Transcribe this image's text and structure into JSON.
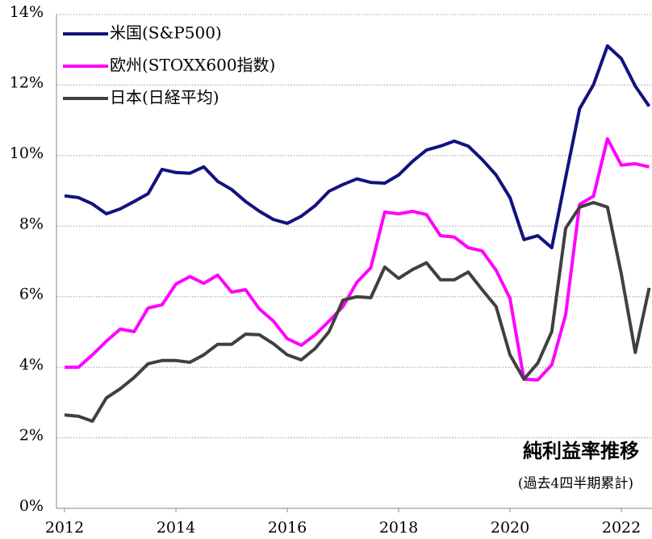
{
  "chart_data": {
    "type": "line",
    "title": "純利益率推移",
    "subtitle": "(過去4四半期累計)",
    "x": [
      2012,
      2012.25,
      2012.5,
      2012.75,
      2013,
      2013.25,
      2013.5,
      2013.75,
      2014,
      2014.25,
      2014.5,
      2014.75,
      2015,
      2015.25,
      2015.5,
      2015.75,
      2016,
      2016.25,
      2016.5,
      2016.75,
      2017,
      2017.25,
      2017.5,
      2017.75,
      2018,
      2018.25,
      2018.5,
      2018.75,
      2019,
      2019.25,
      2019.5,
      2019.75,
      2020,
      2020.25,
      2020.5,
      2020.75,
      2021,
      2021.25,
      2021.5,
      2021.75,
      2022,
      2022.25,
      2022.5
    ],
    "xlim": [
      2011.855,
      2022.55
    ],
    "xticks": [
      2012,
      2014,
      2016,
      2018,
      2020,
      2022
    ],
    "ylim": [
      0,
      14
    ],
    "yticks": [
      {
        "value": 0,
        "label": "0%"
      },
      {
        "value": 2,
        "label": "2%"
      },
      {
        "value": 4,
        "label": "4%"
      },
      {
        "value": 6,
        "label": "6%"
      },
      {
        "value": 8,
        "label": "8%"
      },
      {
        "value": 10,
        "label": "10%"
      },
      {
        "value": 12,
        "label": "12%"
      },
      {
        "value": 14,
        "label": "14%"
      }
    ],
    "grid": true,
    "legend": "top-left",
    "series": [
      {
        "name": "米国(S&P500)",
        "color": "#12127e",
        "values": [
          8.86,
          8.81,
          8.63,
          8.35,
          8.49,
          8.7,
          8.92,
          9.61,
          9.52,
          9.5,
          9.68,
          9.27,
          9.04,
          8.7,
          8.42,
          8.19,
          8.08,
          8.28,
          8.58,
          8.99,
          9.18,
          9.34,
          9.24,
          9.22,
          9.45,
          9.84,
          10.16,
          10.27,
          10.41,
          10.27,
          9.89,
          9.45,
          8.81,
          7.62,
          7.73,
          7.39,
          9.38,
          11.33,
          12.01,
          13.11,
          12.75,
          11.97,
          11.4
        ]
      },
      {
        "name": "欧州(STOXX600指数)",
        "color": "#ff00ff",
        "values": [
          4.0,
          4.0,
          4.35,
          4.74,
          5.08,
          5.01,
          5.68,
          5.77,
          6.36,
          6.57,
          6.38,
          6.61,
          6.13,
          6.2,
          5.65,
          5.31,
          4.81,
          4.62,
          4.92,
          5.31,
          5.72,
          6.41,
          6.82,
          8.4,
          8.35,
          8.42,
          8.33,
          7.73,
          7.69,
          7.39,
          7.3,
          6.75,
          5.95,
          3.66,
          3.64,
          4.07,
          5.49,
          8.62,
          8.85,
          10.48,
          9.73,
          9.77,
          9.68
        ]
      },
      {
        "name": "日本(日経平均)",
        "color": "#404040",
        "values": [
          2.65,
          2.61,
          2.47,
          3.13,
          3.39,
          3.71,
          4.1,
          4.19,
          4.19,
          4.14,
          4.35,
          4.65,
          4.65,
          4.94,
          4.92,
          4.67,
          4.35,
          4.21,
          4.53,
          5.01,
          5.9,
          6.0,
          5.97,
          6.84,
          6.52,
          6.77,
          6.96,
          6.48,
          6.48,
          6.7,
          6.2,
          5.72,
          4.35,
          3.66,
          4.12,
          5.01,
          7.94,
          8.54,
          8.67,
          8.54,
          6.64,
          4.42,
          6.25
        ]
      }
    ]
  }
}
